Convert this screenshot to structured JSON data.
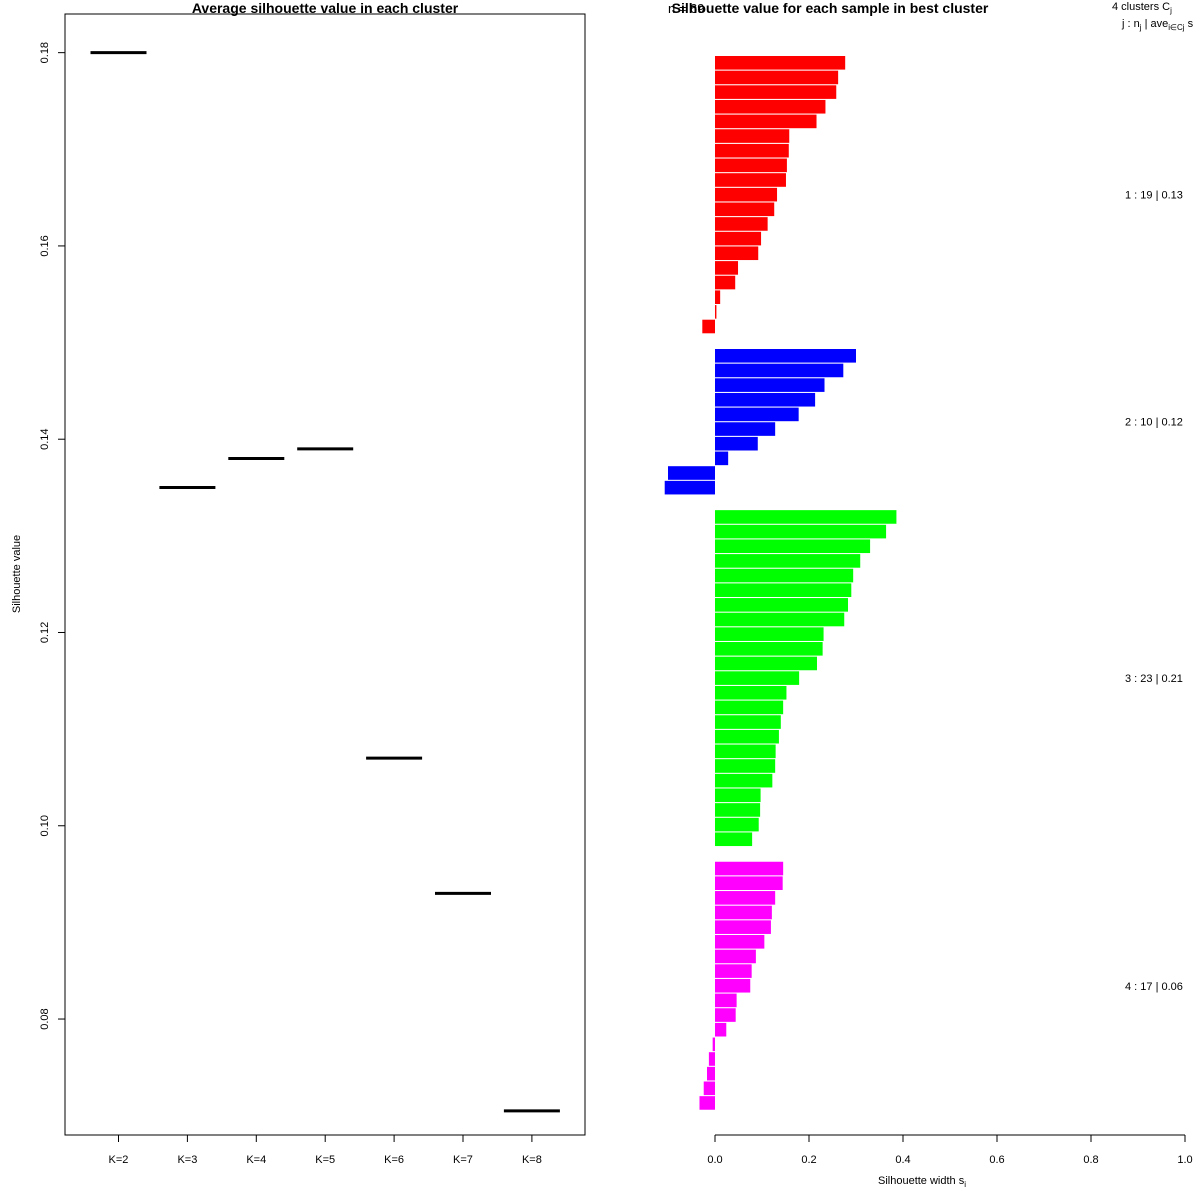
{
  "chart_data": [
    {
      "type": "line",
      "title": "Average silhouette value in each cluster",
      "xlabel": "",
      "ylabel": "Silhouette value",
      "categories": [
        "K=2",
        "K=3",
        "K=4",
        "K=5",
        "K=6",
        "K=7",
        "K=8"
      ],
      "values": [
        0.18,
        0.135,
        0.138,
        0.139,
        0.107,
        0.093,
        0.0705
      ],
      "ylim": [
        0.068,
        0.184
      ],
      "yticks": [
        "0.08",
        "0.10",
        "0.12",
        "0.14",
        "0.16",
        "0.18"
      ],
      "grid": false
    },
    {
      "type": "bar",
      "title": "Silhouette value for each sample in best cluster",
      "title_overlap": "n = 69",
      "xlabel": "Silhouette width s",
      "xlabel_subscript": "i",
      "xlim": [
        0,
        1
      ],
      "xticks": [
        "0.0",
        "0.2",
        "0.4",
        "0.6",
        "0.8",
        "1.0"
      ],
      "legend_header": {
        "line1": "4  clusters  C",
        "line1_sub": "j",
        "line2": "j :  n",
        "line2_sub1": "j",
        "line2_mid": " | ave",
        "line2_sub2": "i∈Cj",
        "line2_end": "  s"
      },
      "clusters": [
        {
          "id": 1,
          "color": "#ff0000",
          "label": "1 :   19  |  0.13",
          "widths": [
            0.277,
            0.262,
            0.258,
            0.235,
            0.216,
            0.158,
            0.157,
            0.153,
            0.151,
            0.132,
            0.126,
            0.112,
            0.098,
            0.092,
            0.049,
            0.043,
            0.011,
            0.003,
            -0.027
          ]
        },
        {
          "id": 2,
          "color": "#0000ff",
          "label": "2 :   10  |  0.12",
          "widths": [
            0.3,
            0.273,
            0.233,
            0.213,
            0.178,
            0.128,
            0.091,
            0.028,
            -0.1,
            -0.107
          ]
        },
        {
          "id": 3,
          "color": "#00ff00",
          "label": "3 :   23  |  0.21",
          "widths": [
            0.386,
            0.364,
            0.33,
            0.309,
            0.294,
            0.29,
            0.283,
            0.275,
            0.231,
            0.229,
            0.217,
            0.179,
            0.152,
            0.145,
            0.14,
            0.136,
            0.129,
            0.128,
            0.122,
            0.097,
            0.096,
            0.093,
            0.079
          ]
        },
        {
          "id": 4,
          "color": "#ff00ff",
          "label": "4 :   17  |  0.06",
          "widths": [
            0.145,
            0.144,
            0.128,
            0.121,
            0.119,
            0.105,
            0.087,
            0.078,
            0.075,
            0.046,
            0.044,
            0.024,
            -0.005,
            -0.013,
            -0.017,
            -0.024,
            -0.033
          ]
        }
      ]
    }
  ]
}
